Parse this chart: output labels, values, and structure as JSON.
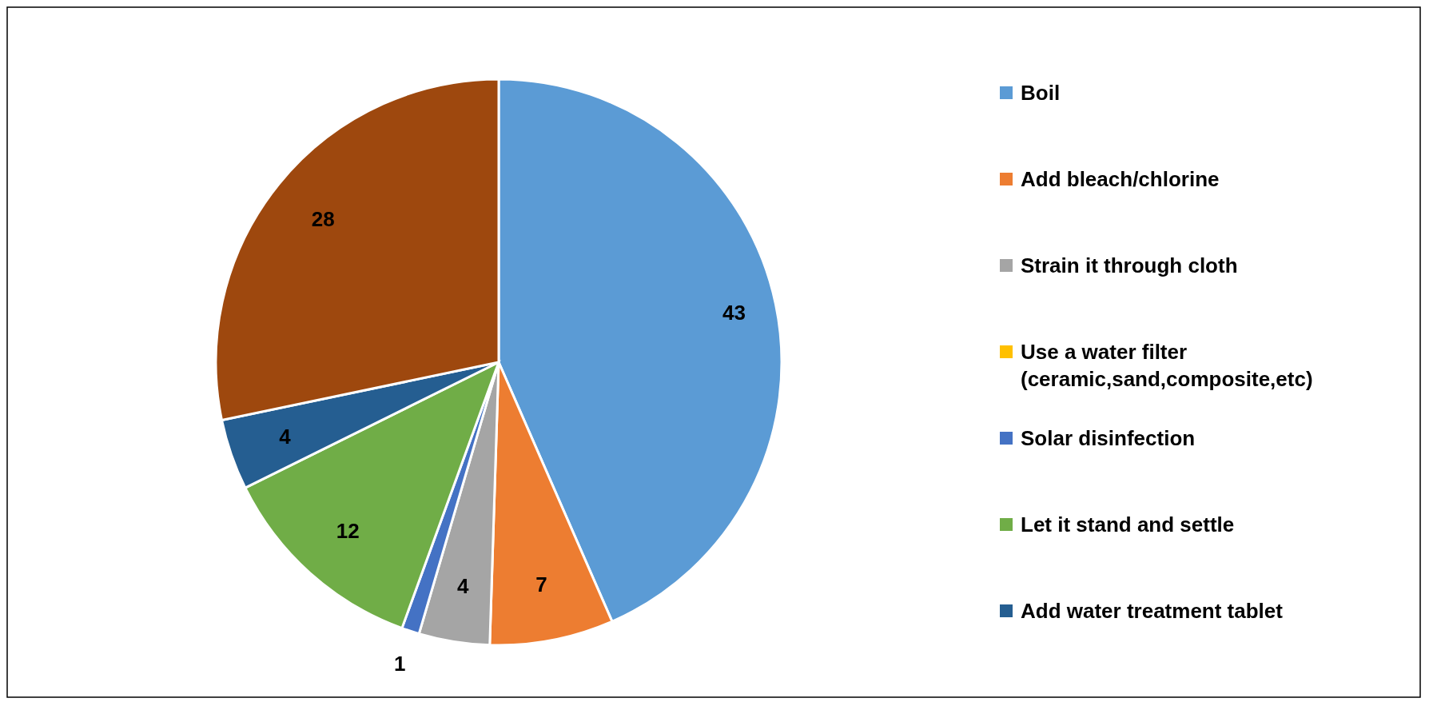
{
  "chart_data": {
    "type": "pie",
    "categories": [
      "Boil",
      "Add bleach/chlorine",
      "Strain it through cloth",
      "Use a water filter (ceramic,sand,composite,etc)",
      "Solar disinfection",
      "Let it stand and settle",
      "Add water treatment tablet",
      null
    ],
    "values": [
      43,
      7,
      4,
      0,
      1,
      12,
      4,
      28
    ],
    "colors": [
      "#5b9bd5",
      "#ed7d31",
      "#a5a5a5",
      "#ffc000",
      "#4472c4",
      "#70ad47",
      "#255e91",
      "#9e480e"
    ],
    "value_labels": [
      "43",
      "7",
      "4",
      null,
      "1",
      "12",
      "4",
      "28"
    ],
    "legend": "right"
  }
}
